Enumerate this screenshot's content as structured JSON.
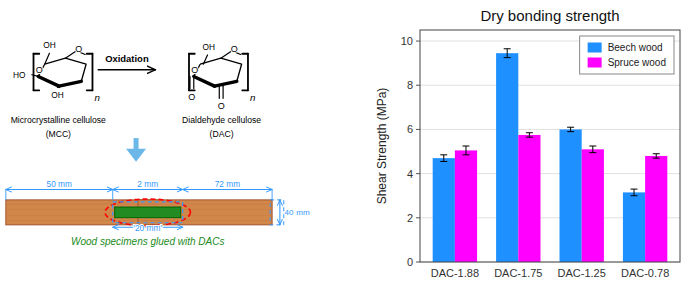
{
  "chart_data": {
    "type": "bar",
    "title": "Dry bonding strength",
    "ylabel": "Shear Strength (MPa)",
    "categories": [
      "DAC-1.88",
      "DAC-1.75",
      "DAC-1.25",
      "DAC-0.78"
    ],
    "series": [
      {
        "name": "Beech wood",
        "color": "#1E90FF",
        "values": [
          4.7,
          9.45,
          6.0,
          3.15
        ],
        "errors": [
          0.15,
          0.2,
          0.1,
          0.15
        ]
      },
      {
        "name": "Spruce wood",
        "color": "#FF00FF",
        "values": [
          5.05,
          5.75,
          5.1,
          4.8
        ],
        "errors": [
          0.2,
          0.1,
          0.15,
          0.1
        ]
      }
    ],
    "ylim": [
      0,
      10.5
    ],
    "yticks": [
      0,
      2,
      4,
      6,
      8,
      10
    ],
    "grid": true,
    "legend": "upper right",
    "annotations": [
      "O",
      "OH",
      "O",
      "OH",
      "HO",
      "n",
      "Microcrystalline cellulose",
      "(MCC)",
      "Oxidation",
      "O",
      "O",
      "O",
      "O",
      "OH",
      "n",
      "Dialdehyde cellulose",
      "(DAC)",
      "'20 mm'",
      "50 mm",
      "2 mm",
      "72 mm",
      "40",
      "mm",
      "Wood specimens glued with DACs"
    ]
  }
}
